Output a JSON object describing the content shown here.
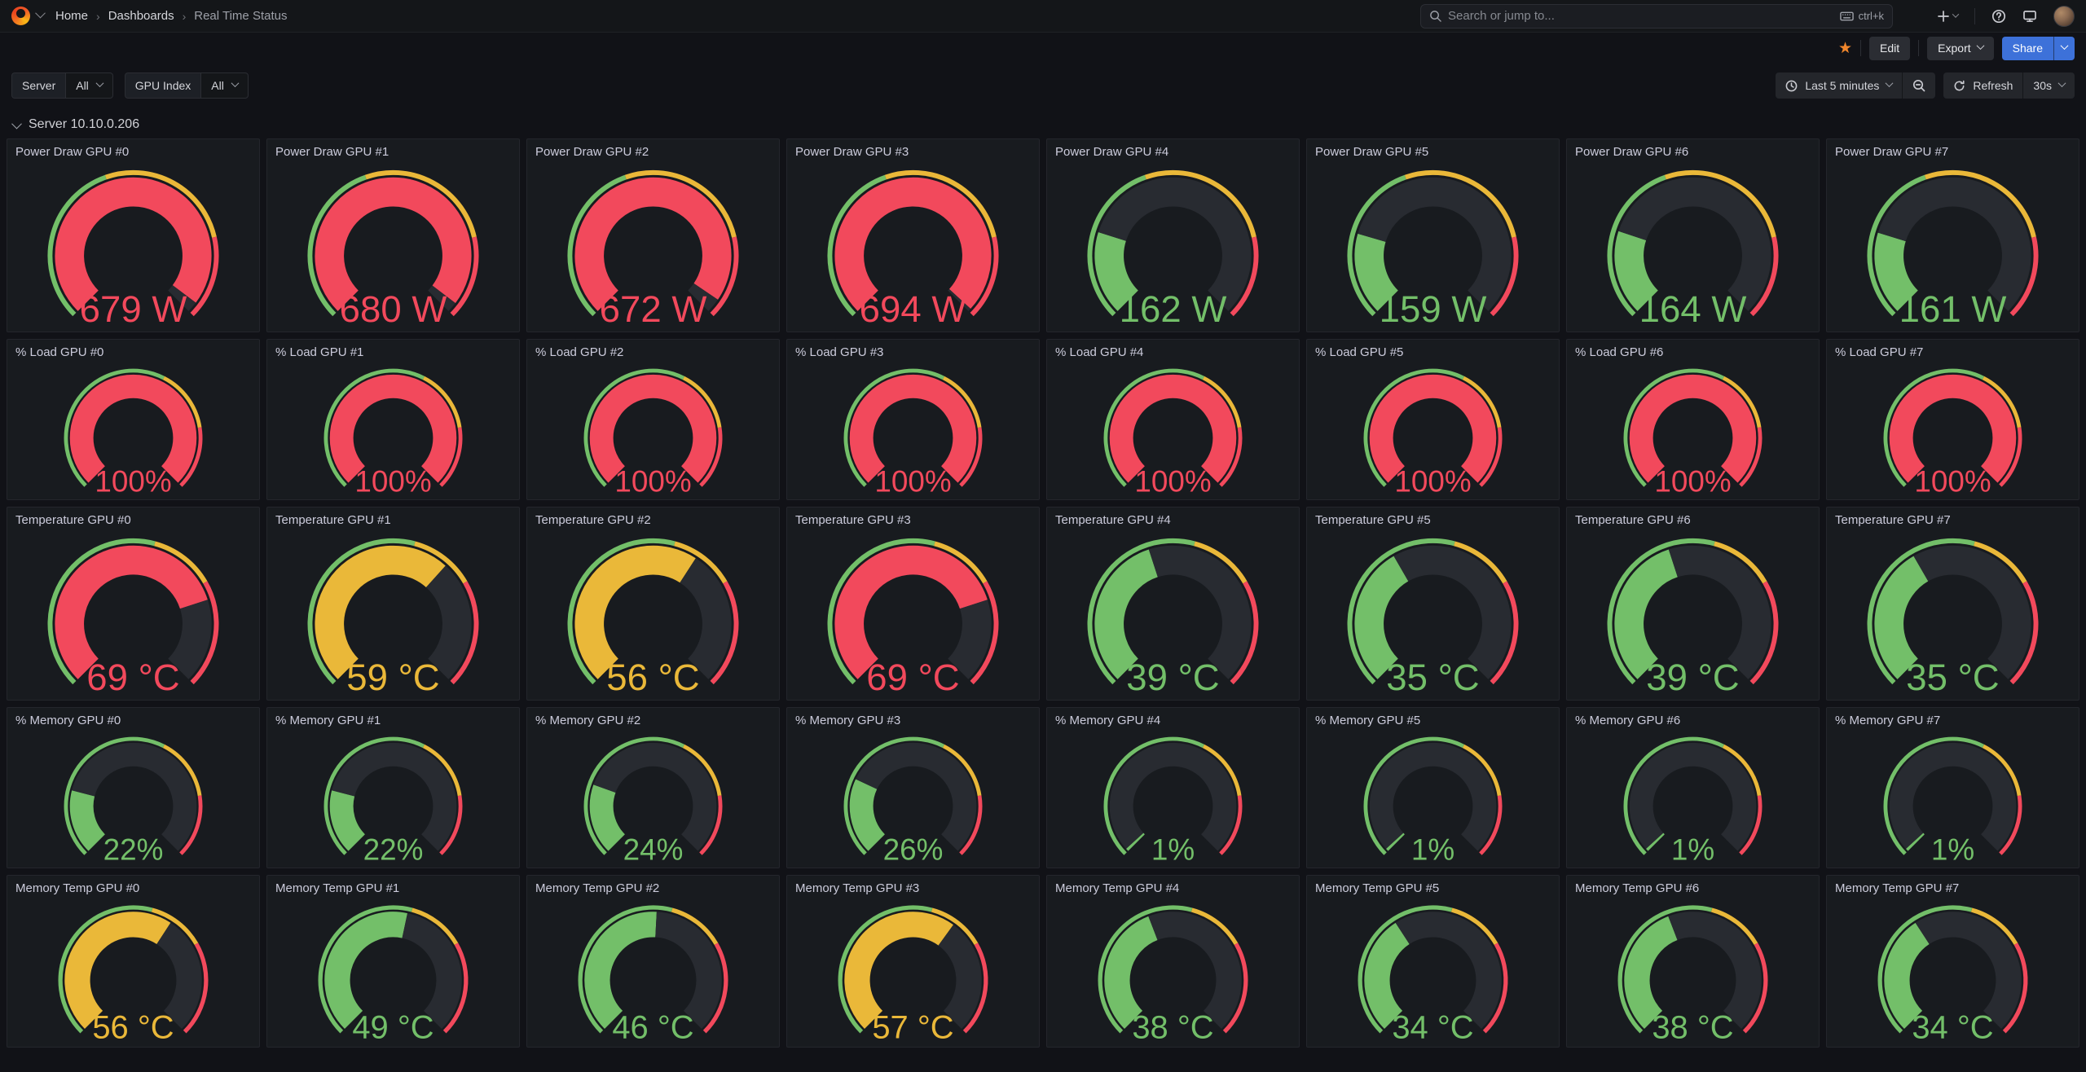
{
  "nav": {
    "breadcrumbs": [
      {
        "label": "Home"
      },
      {
        "label": "Dashboards"
      },
      {
        "label": "Real Time Status"
      }
    ],
    "search": {
      "placeholder": "Search or jump to...",
      "shortcut": "ctrl+k"
    }
  },
  "toolbar": {
    "edit_label": "Edit",
    "export_label": "Export",
    "share_label": "Share"
  },
  "variables": [
    {
      "label": "Server",
      "value": "All"
    },
    {
      "label": "GPU Index",
      "value": "All"
    }
  ],
  "timebar": {
    "range_label": "Last 5 minutes",
    "refresh_label": "Refresh",
    "interval": "30s"
  },
  "row_header": {
    "title": "Server 10.10.0.206"
  },
  "colors": {
    "green": "#73BF69",
    "yellow": "#EAB839",
    "red": "#F2495C",
    "track": "#282B31",
    "accent_blue": "#3D71D9",
    "star_orange": "#F0862C"
  },
  "gauge_rows": [
    {
      "slug": "power-draw",
      "title_prefix": "Power Draw GPU",
      "unit_suffix": " W",
      "min": 0,
      "max": 700,
      "thresholds": {
        "yellow": 300,
        "red": 550
      },
      "values": [
        679,
        680,
        672,
        694,
        162,
        159,
        164,
        161
      ]
    },
    {
      "slug": "load",
      "title_prefix": "% Load GPU",
      "unit_suffix": "%",
      "min": 0,
      "max": 100,
      "thresholds": {
        "yellow": 60,
        "red": 80
      },
      "values": [
        100,
        100,
        100,
        100,
        100,
        100,
        100,
        100
      ]
    },
    {
      "slug": "temperature",
      "title_prefix": "Temperature GPU",
      "unit_suffix": " °C",
      "min": 0,
      "max": 90,
      "thresholds": {
        "yellow": 50,
        "red": 65
      },
      "values": [
        69,
        59,
        56,
        69,
        39,
        35,
        39,
        35
      ]
    },
    {
      "slug": "memory",
      "title_prefix": "% Memory GPU",
      "unit_suffix": "%",
      "min": 0,
      "max": 100,
      "thresholds": {
        "yellow": 60,
        "red": 80
      },
      "values": [
        22,
        22,
        24,
        26,
        1,
        1,
        1,
        1
      ]
    },
    {
      "slug": "memory-temp",
      "title_prefix": "Memory Temp GPU",
      "unit_suffix": " °C",
      "min": 0,
      "max": 90,
      "thresholds": {
        "yellow": 50,
        "red": 65
      },
      "values": [
        56,
        49,
        46,
        57,
        38,
        34,
        38,
        34
      ]
    }
  ]
}
